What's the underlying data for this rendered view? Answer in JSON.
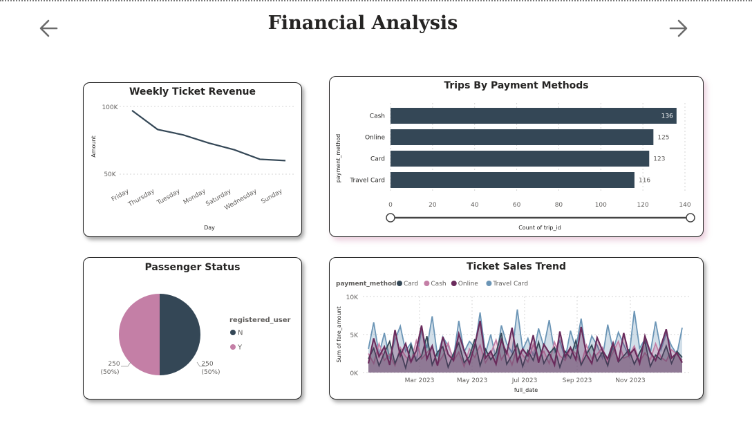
{
  "page": {
    "title": "Financial Analysis",
    "nav_prev_icon": "arrow-left-icon",
    "nav_next_icon": "arrow-right-icon"
  },
  "colors": {
    "navy": "#344756",
    "pink": "#c47fa6",
    "plum": "#6a2b5c",
    "steel": "#6b95b6",
    "grid": "#d6d6d6"
  },
  "weekly_revenue": {
    "title": "Weekly Ticket Revenue",
    "xlabel": "Day",
    "ylabel": "Amount",
    "y_ticks": [
      "100K",
      "50K"
    ]
  },
  "payment_methods": {
    "title": "Trips By Payment Methods",
    "xlabel": "Count of trip_id",
    "ylabel": "payment_method"
  },
  "passenger_status": {
    "title": "Passenger Status",
    "legend_title": "registered_user",
    "left_label_value": "250",
    "left_label_pct": "(50%)",
    "right_label_value": "250",
    "right_label_pct": "(50%)"
  },
  "sales_trend": {
    "title": "Ticket Sales Trend",
    "legend_title": "payment_method",
    "xlabel": "full_date",
    "ylabel": "Sum of fare_amount",
    "y_ticks": [
      "10K",
      "5K",
      "0K"
    ],
    "x_ticks": [
      "Mar 2023",
      "May 2023",
      "Jul 2023",
      "Sep 2023",
      "Nov 2023"
    ]
  },
  "chart_data": [
    {
      "type": "line",
      "title": "Weekly Ticket Revenue",
      "xlabel": "Day",
      "ylabel": "Amount",
      "categories": [
        "Friday",
        "Thursday",
        "Tuesday",
        "Monday",
        "Saturday",
        "Wednesday",
        "Sunday"
      ],
      "values": [
        97000,
        83000,
        79000,
        73000,
        68000,
        61000,
        60000
      ],
      "ylim": [
        40000,
        105000
      ],
      "grid": true
    },
    {
      "type": "bar",
      "orientation": "horizontal",
      "title": "Trips By Payment Methods",
      "xlabel": "Count of trip_id",
      "ylabel": "payment_method",
      "categories": [
        "Cash",
        "Online",
        "Card",
        "Travel Card"
      ],
      "values": [
        136,
        125,
        123,
        116
      ],
      "xlim": [
        0,
        140
      ],
      "x_ticks": [
        0,
        20,
        40,
        60,
        80,
        100,
        120,
        140
      ],
      "grid": true
    },
    {
      "type": "pie",
      "title": "Passenger Status",
      "legend_title": "registered_user",
      "categories": [
        "N",
        "Y"
      ],
      "values": [
        250,
        250
      ],
      "legend_placement": "right"
    },
    {
      "type": "area",
      "title": "Ticket Sales Trend",
      "xlabel": "full_date",
      "ylabel": "Sum of fare_amount",
      "legend_title": "payment_method",
      "legend_placement": "top-left",
      "ylim": [
        0,
        10000
      ],
      "x_ticks": [
        "Mar 2023",
        "May 2023",
        "Jul 2023",
        "Sep 2023",
        "Nov 2023"
      ],
      "series": [
        {
          "name": "Card",
          "values": [
            1800,
            3200,
            900,
            2600,
            4100,
            1200,
            2900,
            600,
            3600,
            1500,
            2200,
            4800,
            1000,
            2700,
            3400,
            700,
            2500,
            3900,
            1300,
            2100,
            4400,
            900,
            3100,
            1700,
            2600,
            5200,
            1100,
            2300,
            3700,
            800,
            2900,
            1600,
            4000,
            1200,
            2500,
            3300,
            700,
            2800,
            1900,
            4200,
            1000,
            2400,
            3600,
            1500,
            2700,
            900,
            3800,
            1400,
            2200,
            3000,
            1100,
            2600,
            4100,
            800,
            2300,
            1700,
            3500,
            1200,
            2800,
            2000
          ]
        },
        {
          "name": "Cash",
          "values": [
            2500,
            1200,
            3800,
            1600,
            2400,
            900,
            3300,
            2100,
            1400,
            4200,
            1800,
            2600,
            3500,
            1100,
            2200,
            3900,
            1500,
            2700,
            800,
            3100,
            2000,
            3600,
            1300,
            2500,
            4300,
            1700,
            2900,
            1000,
            3400,
            2300,
            1400,
            3700,
            1900,
            2800,
            1200,
            4000,
            2200,
            1600,
            3200,
            2500,
            1100,
            3600,
            1800,
            2400,
            3300,
            1300,
            2700,
            4100,
            1900,
            2200,
            3500,
            1400,
            2600,
            1700,
            3800,
            2000,
            1500,
            3000,
            2400,
            1600
          ]
        },
        {
          "name": "Online",
          "values": [
            1200,
            4500,
            2100,
            3400,
            1000,
            5600,
            2200,
            3800,
            1400,
            2900,
            6200,
            1800,
            3500,
            900,
            4700,
            2400,
            1600,
            5100,
            2900,
            1200,
            3600,
            6800,
            1900,
            2800,
            1100,
            4300,
            2500,
            5900,
            1500,
            3100,
            2200,
            4900,
            1300,
            3700,
            2600,
            1000,
            5400,
            2100,
            3300,
            1700,
            6000,
            2400,
            1200,
            4600,
            2900,
            1800,
            3900,
            1400,
            5200,
            2300,
            3100,
            1200,
            4800,
            2700,
            1600,
            3500,
            5700,
            1900,
            2600,
            1300
          ]
        },
        {
          "name": "Travel Card",
          "values": [
            3100,
            6600,
            2400,
            5200,
            1800,
            4300,
            6100,
            2800,
            3900,
            1600,
            5600,
            3200,
            7400,
            2100,
            4700,
            3500,
            1900,
            6800,
            2700,
            4100,
            3300,
            7900,
            2500,
            5000,
            1700,
            6200,
            3800,
            2600,
            8300,
            3000,
            4500,
            2200,
            5800,
            3400,
            6900,
            2700,
            4200,
            1800,
            5500,
            3100,
            7100,
            2300,
            4800,
            3600,
            1900,
            6300,
            2900,
            5300,
            3700,
            2100,
            8100,
            3200,
            4400,
            2500,
            6700,
            3000,
            5100,
            3500,
            2400,
            5900
          ]
        }
      ],
      "grid": true
    }
  ]
}
